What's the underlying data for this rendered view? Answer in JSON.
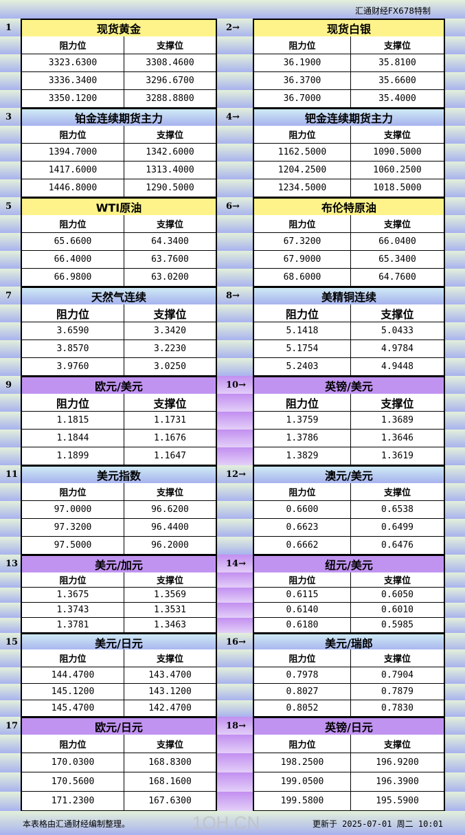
{
  "header": {
    "brand": "汇通财经FX678特制"
  },
  "colors": {
    "yellow": "#fdf38a",
    "blue": "linear-gradient(#cfeaf5,#a6b2ee)",
    "purple": "#c193f1",
    "purple_mid": "linear-gradient(#c28ff0,#e3cff8)"
  },
  "col_headers": [
    "阻力位",
    "支撑位"
  ],
  "sections": [
    {
      "style": "yellow",
      "left": {
        "num": "1",
        "title": "现货黄金",
        "rows": [
          [
            "3323.6300",
            "3308.4600"
          ],
          [
            "3336.3400",
            "3296.6700"
          ],
          [
            "3350.1200",
            "3288.8800"
          ]
        ]
      },
      "right": {
        "num": "2→",
        "title": "现货白银",
        "rows": [
          [
            "36.1900",
            "35.8100"
          ],
          [
            "36.3700",
            "35.6600"
          ],
          [
            "36.7000",
            "35.4000"
          ]
        ]
      }
    },
    {
      "style": "blue",
      "left": {
        "num": "3",
        "title": "铂金连续期货主力",
        "rows": [
          [
            "1394.7000",
            "1342.6000"
          ],
          [
            "1417.6000",
            "1313.4000"
          ],
          [
            "1446.8000",
            "1290.5000"
          ]
        ]
      },
      "right": {
        "num": "4→",
        "title": "钯金连续期货主力",
        "rows": [
          [
            "1162.5000",
            "1090.5000"
          ],
          [
            "1204.2500",
            "1060.2500"
          ],
          [
            "1234.5000",
            "1018.5000"
          ]
        ]
      }
    },
    {
      "style": "yellow",
      "left": {
        "num": "5",
        "title": "WTI原油",
        "rows": [
          [
            "65.6600",
            "64.3400"
          ],
          [
            "66.4000",
            "63.7600"
          ],
          [
            "66.9800",
            "63.0200"
          ]
        ]
      },
      "right": {
        "num": "6→",
        "title": "布伦特原油",
        "rows": [
          [
            "67.3200",
            "66.0400"
          ],
          [
            "67.9000",
            "65.3400"
          ],
          [
            "68.6000",
            "64.7600"
          ]
        ]
      }
    },
    {
      "style": "blue",
      "left": {
        "num": "7",
        "title": "天然气连续",
        "rows": [
          [
            "3.6590",
            "3.3420"
          ],
          [
            "3.8570",
            "3.2230"
          ],
          [
            "3.9760",
            "3.0250"
          ]
        ]
      },
      "right": {
        "num": "8→",
        "title": "美精铜连续",
        "rows": [
          [
            "5.1418",
            "5.0433"
          ],
          [
            "5.1754",
            "4.9784"
          ],
          [
            "5.2403",
            "4.9448"
          ]
        ]
      }
    },
    {
      "style": "purple",
      "left": {
        "num": "9",
        "title": "欧元/美元",
        "rows": [
          [
            "1.1815",
            "1.1731"
          ],
          [
            "1.1844",
            "1.1676"
          ],
          [
            "1.1899",
            "1.1647"
          ]
        ]
      },
      "right": {
        "num": "10→",
        "title": "英镑/美元",
        "rows": [
          [
            "1.3759",
            "1.3689"
          ],
          [
            "1.3786",
            "1.3646"
          ],
          [
            "1.3829",
            "1.3619"
          ]
        ]
      }
    },
    {
      "style": "blue",
      "left": {
        "num": "11",
        "title": "美元指数",
        "rows": [
          [
            "97.0000",
            "96.6200"
          ],
          [
            "97.3200",
            "96.4400"
          ],
          [
            "97.5000",
            "96.2000"
          ]
        ]
      },
      "right": {
        "num": "12→",
        "title": "澳元/美元",
        "rows": [
          [
            "0.6600",
            "0.6538"
          ],
          [
            "0.6623",
            "0.6499"
          ],
          [
            "0.6662",
            "0.6476"
          ]
        ]
      }
    },
    {
      "style": "purple",
      "left": {
        "num": "13",
        "title": "美元/加元",
        "rows": [
          [
            "1.3675",
            "1.3569"
          ],
          [
            "1.3743",
            "1.3531"
          ],
          [
            "1.3781",
            "1.3463"
          ]
        ]
      },
      "right": {
        "num": "14→",
        "title": "纽元/美元",
        "rows": [
          [
            "0.6115",
            "0.6050"
          ],
          [
            "0.6140",
            "0.6010"
          ],
          [
            "0.6180",
            "0.5985"
          ]
        ]
      }
    },
    {
      "style": "blue",
      "left": {
        "num": "15",
        "title": "美元/日元",
        "rows": [
          [
            "144.4700",
            "143.4700"
          ],
          [
            "145.1200",
            "143.1200"
          ],
          [
            "145.4700",
            "142.4700"
          ]
        ]
      },
      "right": {
        "num": "16→",
        "title": "美元/瑞郎",
        "rows": [
          [
            "0.7978",
            "0.7904"
          ],
          [
            "0.8027",
            "0.7879"
          ],
          [
            "0.8052",
            "0.7830"
          ]
        ]
      }
    },
    {
      "style": "purple",
      "left": {
        "num": "17",
        "title": "欧元/日元",
        "rows": [
          [
            "170.0300",
            "168.8300"
          ],
          [
            "170.5600",
            "168.1600"
          ],
          [
            "171.2300",
            "167.6300"
          ]
        ]
      },
      "right": {
        "num": "18→",
        "title": "英镑/日元",
        "rows": [
          [
            "198.2500",
            "196.9200"
          ],
          [
            "199.0500",
            "196.3900"
          ],
          [
            "199.5800",
            "195.5900"
          ]
        ]
      }
    }
  ],
  "footer": {
    "note": "本表格由汇通财经编制整理。",
    "updated": "更新于 2025-07-01 周二 10:01"
  },
  "watermark": "1OH.CN"
}
